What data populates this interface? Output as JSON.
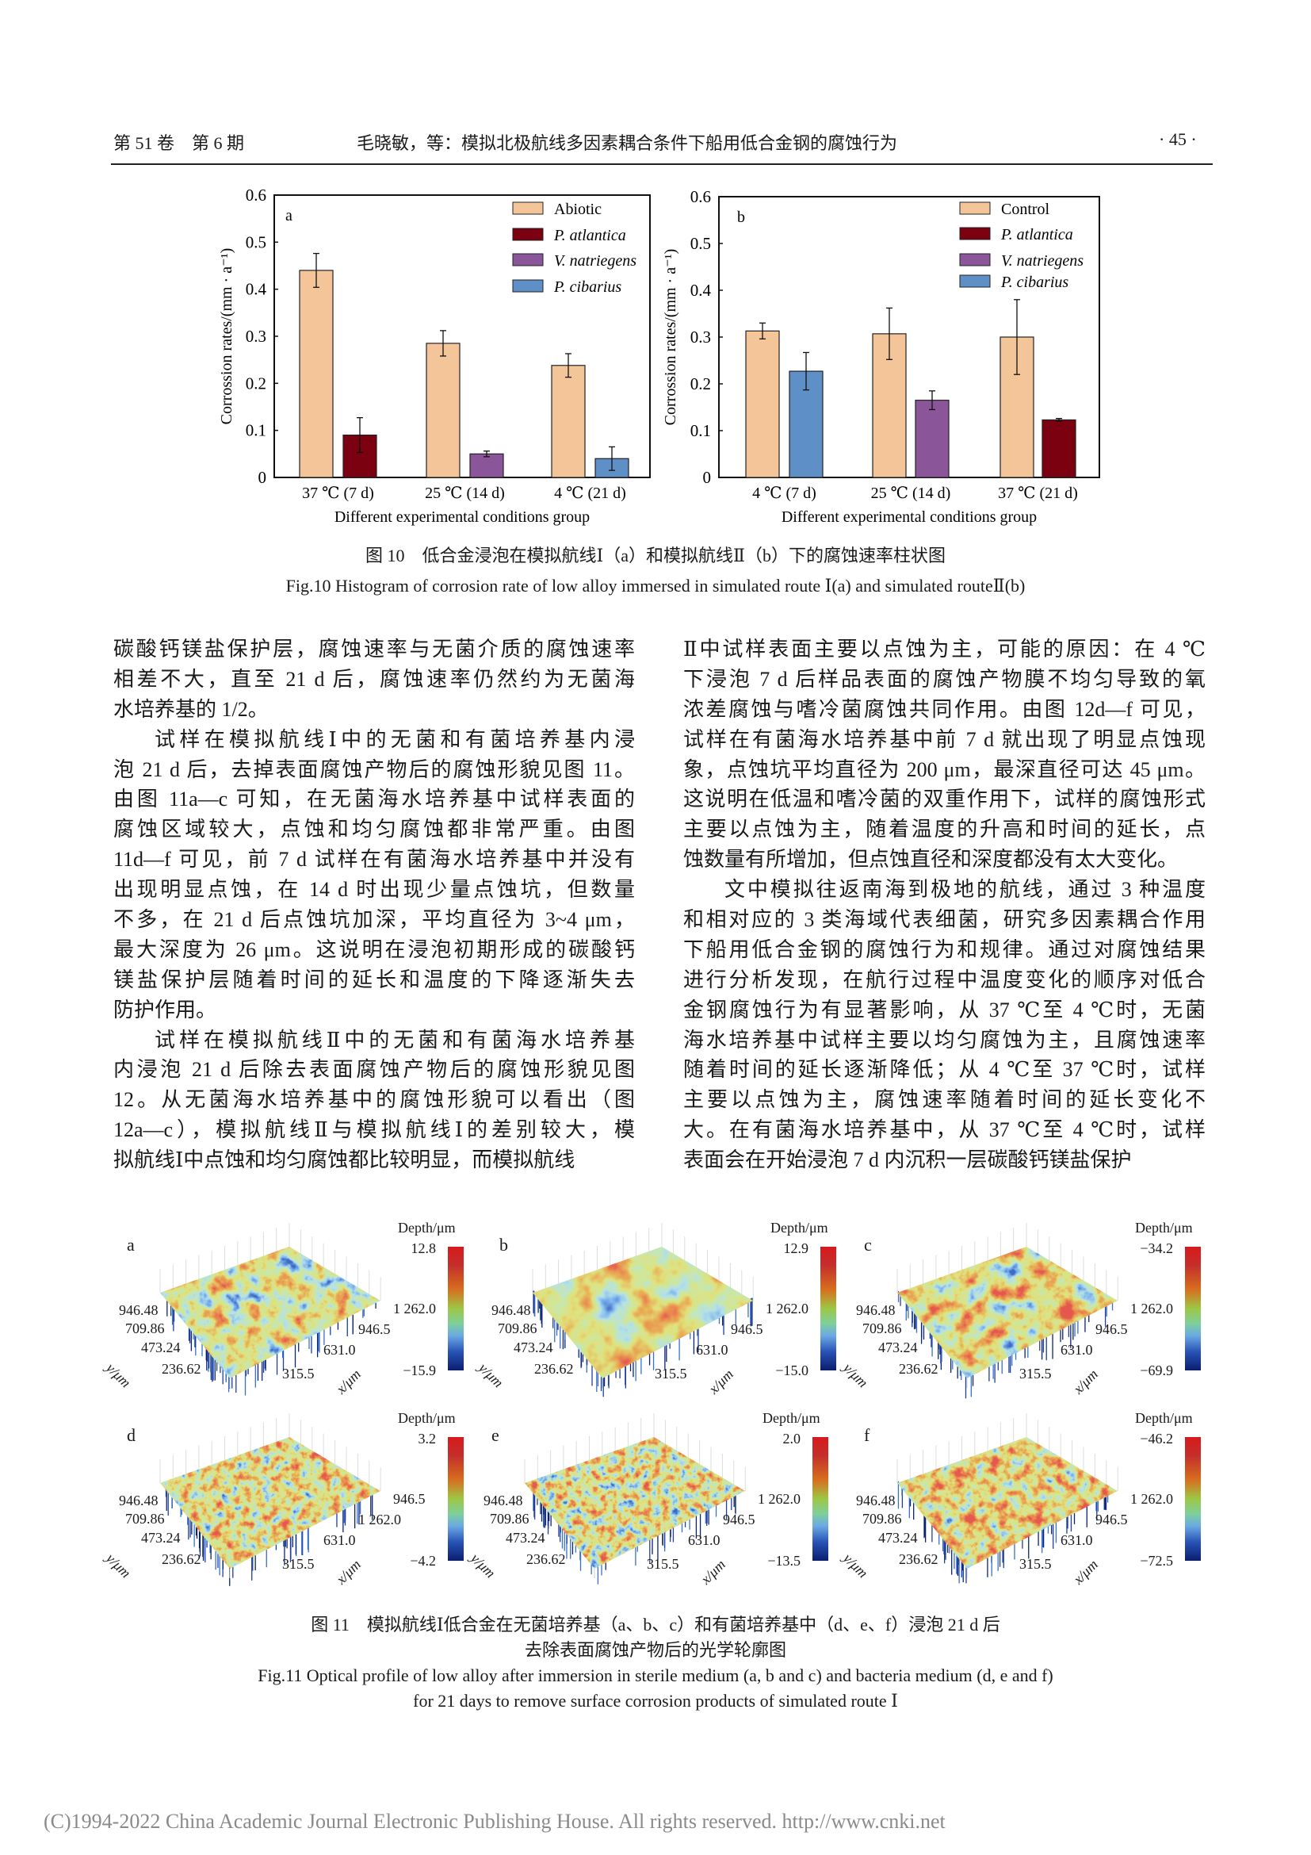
{
  "header": {
    "volume_issue": "第 51 卷　第 6 期",
    "running_title": "毛晓敏，等：模拟北极航线多因素耦合条件下船用低合金钢的腐蚀行为",
    "page_number": "· 45 ·"
  },
  "chart_data": [
    {
      "type": "bar",
      "panel_label": "a",
      "title": "",
      "xlabel": "Different experimental conditions group",
      "ylabel": "Corrossion rates/(mm · a⁻¹)",
      "ylim": [
        0,
        0.6
      ],
      "yticks": [
        "0",
        "0.1",
        "0.2",
        "0.3",
        "0.4",
        "0.5",
        "0.6"
      ],
      "categories": [
        "37 ℃  (7 d)",
        "25 ℃  (14 d)",
        "4 ℃  (21 d)"
      ],
      "legend_position": "top-right",
      "series": [
        {
          "name": "Abiotic",
          "color": "#F5C59A",
          "values": [
            0.44,
            0.285,
            0.238
          ],
          "errors": [
            0.036,
            0.027,
            0.025
          ]
        },
        {
          "name": "P. atlantica",
          "color": "#7B0010",
          "values": [
            0.09,
            null,
            null
          ],
          "errors": [
            0.037,
            null,
            null
          ]
        },
        {
          "name": "V. natriegens",
          "color": "#8B5699",
          "values": [
            null,
            0.05,
            null
          ],
          "errors": [
            null,
            0.006,
            null
          ]
        },
        {
          "name": "P. cibarius",
          "color": "#5E8FC6",
          "values": [
            null,
            null,
            0.04
          ],
          "errors": [
            null,
            null,
            0.025
          ]
        }
      ]
    },
    {
      "type": "bar",
      "panel_label": "b",
      "title": "",
      "xlabel": "Different experimental conditions group",
      "ylabel": "Corrossion rates/(mm · a⁻¹)",
      "ylim": [
        0,
        0.6
      ],
      "yticks": [
        "0",
        "0.1",
        "0.2",
        "0.3",
        "0.4",
        "0.5",
        "0.6"
      ],
      "categories": [
        "4 ℃  (7 d)",
        "25 ℃  (14 d)",
        "37 ℃  (21 d)"
      ],
      "legend_position": "top-right",
      "series": [
        {
          "name": "Control",
          "color": "#F5C59A",
          "values": [
            0.313,
            0.307,
            0.3
          ],
          "errors": [
            0.017,
            0.055,
            0.08
          ]
        },
        {
          "name": "P. atlantica",
          "color": "#7B0010",
          "values": [
            null,
            null,
            0.123
          ],
          "errors": [
            null,
            null,
            0.003
          ]
        },
        {
          "name": "V. natriegens",
          "color": "#8B5699",
          "values": [
            null,
            0.165,
            null
          ],
          "errors": [
            null,
            0.02,
            null
          ]
        },
        {
          "name": "P. cibarius",
          "color": "#5E8FC6",
          "values": [
            0.227,
            null,
            null
          ],
          "errors": [
            0.04,
            null,
            null
          ]
        }
      ]
    }
  ],
  "fig10": {
    "caption_cn": "图 10　低合金浸泡在模拟航线Ⅰ（a）和模拟航线Ⅱ（b）下的腐蚀速率柱状图",
    "caption_en": "Fig.10 Histogram of corrosion rate of low alloy immersed in simulated route Ⅰ(a) and simulated routeⅡ(b)"
  },
  "body": {
    "left": [
      "碳酸钙镁盐保护层，腐蚀速率与无菌介质的腐蚀速率",
      "相差不大，直至 21 d 后，腐蚀速率仍然约为无菌海",
      "水培养基的 1/2。",
      "试样在模拟航线Ⅰ中的无菌和有菌培养基内浸",
      "泡 21 d 后，去掉表面腐蚀产物后的腐蚀形貌见图 11。",
      "由图 11a—c 可知，在无菌海水培养基中试样表面的",
      "腐蚀区域较大，点蚀和均匀腐蚀都非常严重。由图",
      "11d—f 可见，前 7 d 试样在有菌海水培养基中并没有",
      "出现明显点蚀，在 14 d 时出现少量点蚀坑，但数量",
      "不多，在 21 d 后点蚀坑加深，平均直径为 3~4 μm，",
      "最大深度为 26 μm。这说明在浸泡初期形成的碳酸钙",
      "镁盐保护层随着时间的延长和温度的下降逐渐失去",
      "防护作用。",
      "试样在模拟航线Ⅱ中的无菌和有菌海水培养基",
      "内浸泡 21 d 后除去表面腐蚀产物后的腐蚀形貌见图",
      "12。从无菌海水培养基中的腐蚀形貌可以看出（图",
      "12a—c），模拟航线Ⅱ与模拟航线Ⅰ的差别较大，模",
      "拟航线Ⅰ中点蚀和均匀腐蚀都比较明显，而模拟航线"
    ],
    "right": [
      "Ⅱ中试样表面主要以点蚀为主，可能的原因：在 4 ℃",
      "下浸泡 7 d 后样品表面的腐蚀产物膜不均匀导致的氧",
      "浓差腐蚀与嗜冷菌腐蚀共同作用。由图 12d—f 可见，",
      "试样在有菌海水培养基中前 7 d 就出现了明显点蚀现",
      "象，点蚀坑平均直径为 200 μm，最深直径可达 45 μm。",
      "这说明在低温和嗜冷菌的双重作用下，试样的腐蚀形式",
      "主要以点蚀为主，随着温度的升高和时间的延长，点",
      "蚀数量有所增加，但点蚀直径和深度都没有太大变化。",
      "文中模拟往返南海到极地的航线，通过 3 种温度",
      "和相对应的 3 类海域代表细菌，研究多因素耦合作用",
      "下船用低合金钢的腐蚀行为和规律。通过对腐蚀结果",
      "进行分析发现，在航行过程中温度变化的顺序对低合",
      "金钢腐蚀行为有显著影响，从 37 ℃至 4 ℃时，无菌",
      "海水培养基中试样主要以均匀腐蚀为主，且腐蚀速率",
      "随着时间的延长逐渐降低；从 4 ℃至 37 ℃时，试样",
      "主要以点蚀为主，腐蚀速率随着时间的延长变化不",
      "大。在有菌海水培养基中，从 37 ℃至 4 ℃时，试样",
      "表面会在开始浸泡 7 d 内沉积一层碳酸钙镁盐保护"
    ]
  },
  "fig11": {
    "panels": [
      {
        "label": "a",
        "depth_label": "Depth/μm",
        "max": "12.8",
        "min": "−15.9",
        "y_ticks": [
          "946.48",
          "709.86",
          "473.24",
          "236.62"
        ],
        "x_ticks": [
          "315.5",
          "631.0",
          "946.5",
          "1 262.0"
        ],
        "y_axis": "y/μm",
        "x_axis": "x/μm"
      },
      {
        "label": "b",
        "depth_label": "Depth/μm",
        "max": "12.9",
        "min": "−15.0",
        "y_ticks": [
          "946.48",
          "709.86",
          "473.24",
          "236.62"
        ],
        "x_ticks": [
          "315.5",
          "631.0",
          "946.5",
          "1 262.0"
        ],
        "y_axis": "y/μm",
        "x_axis": "x/μm"
      },
      {
        "label": "c",
        "depth_label": "Depth/μm",
        "max": "−34.2",
        "min": "−69.9",
        "y_ticks": [
          "946.48",
          "709.86",
          "473.24",
          "236.62"
        ],
        "x_ticks": [
          "315.5",
          "631.0",
          "946.5",
          "1 262.0"
        ],
        "y_axis": "y/μm",
        "x_axis": "x/μm"
      },
      {
        "label": "d",
        "depth_label": "Depth/μm",
        "max": "3.2",
        "min": "−4.2",
        "y_ticks": [
          "946.48",
          "709.86",
          "473.24",
          "236.62"
        ],
        "x_ticks": [
          "315.5",
          "631.0",
          "1 262.0",
          "946.5"
        ],
        "y_axis": "y/μm",
        "x_axis": "x/μm"
      },
      {
        "label": "e",
        "depth_label": "Depth/μm",
        "max": "2.0",
        "min": "−13.5",
        "y_ticks": [
          "946.48",
          "709.86",
          "473.24",
          "236.62"
        ],
        "x_ticks": [
          "315.5",
          "631.0",
          "946.5",
          "1 262.0"
        ],
        "y_axis": "y/μm",
        "x_axis": "x/μm"
      },
      {
        "label": "f",
        "depth_label": "Depth/μm",
        "max": "−46.2",
        "min": "−72.5",
        "y_ticks": [
          "946.48",
          "709.86",
          "473.24",
          "236.62"
        ],
        "x_ticks": [
          "315.5",
          "631.0",
          "946.5",
          "1 262.0"
        ],
        "y_axis": "y/μm",
        "x_axis": "x/μm"
      }
    ],
    "caption_cn_1": "图 11　模拟航线Ⅰ低合金在无菌培养基（a、b、c）和有菌培养基中（d、e、f）浸泡 21 d 后",
    "caption_cn_2": "去除表面腐蚀产物后的光学轮廓图",
    "caption_en_1": "Fig.11 Optical profile of low alloy after immersion in sterile medium (a, b and c) and bacteria medium (d, e and f)",
    "caption_en_2": "for 21 days to remove surface corrosion products of simulated route Ⅰ"
  },
  "footer": {
    "copyright": "(C)1994-2022 China Academic Journal Electronic Publishing House. All rights reserved.    http://www.cnki.net"
  }
}
